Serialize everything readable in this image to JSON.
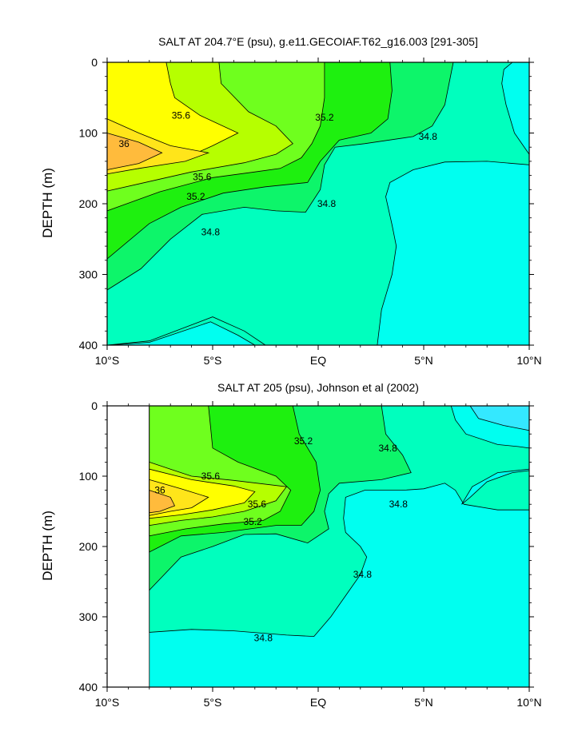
{
  "chart_data": [
    {
      "type": "contour",
      "title": "SALT AT 204.7°E (psu), g.e11.GECOIAF.T62_g16.003 [291-305]",
      "xlabel": "",
      "ylabel": "DEPTH (m)",
      "xlim": [
        -10,
        10
      ],
      "ylim": [
        400,
        0
      ],
      "x_ticks": [
        -10,
        -5,
        0,
        5,
        10
      ],
      "x_tick_labels": [
        "10°S",
        "5°S",
        "EQ",
        "5°N",
        "10°N"
      ],
      "y_ticks": [
        0,
        100,
        200,
        300,
        400
      ],
      "y_tick_labels": [
        "0",
        "100",
        "200",
        "300",
        "400"
      ],
      "contour_labels": [
        {
          "text": "35.6",
          "x": -6.5,
          "depth": 75
        },
        {
          "text": "36",
          "x": -9.2,
          "depth": 115
        },
        {
          "text": "35.2",
          "x": 0.3,
          "depth": 78
        },
        {
          "text": "34.8",
          "x": 5.2,
          "depth": 105
        },
        {
          "text": "35.6",
          "x": -5.5,
          "depth": 162
        },
        {
          "text": "35.2",
          "x": -5.8,
          "depth": 190
        },
        {
          "text": "34.8",
          "x": 0.4,
          "depth": 200
        },
        {
          "text": "34.8",
          "x": -5.1,
          "depth": 240
        }
      ],
      "colorbar": false
    },
    {
      "type": "contour",
      "title": "SALT AT 205 (psu), Johnson et al (2002)",
      "xlabel": "",
      "ylabel": "DEPTH (m)",
      "xlim": [
        -10,
        10
      ],
      "ylim": [
        400,
        0
      ],
      "data_x_range": [
        -8,
        10
      ],
      "x_ticks": [
        -10,
        -5,
        0,
        5,
        10
      ],
      "x_tick_labels": [
        "10°S",
        "5°S",
        "EQ",
        "5°N",
        "10°N"
      ],
      "y_ticks": [
        0,
        100,
        200,
        300,
        400
      ],
      "y_tick_labels": [
        "0",
        "100",
        "200",
        "300",
        "400"
      ],
      "contour_labels": [
        {
          "text": "35.2",
          "x": -0.7,
          "depth": 50
        },
        {
          "text": "34.8",
          "x": 3.3,
          "depth": 60
        },
        {
          "text": "35.6",
          "x": -5.1,
          "depth": 100
        },
        {
          "text": "36",
          "x": -7.5,
          "depth": 120
        },
        {
          "text": "35.6",
          "x": -2.9,
          "depth": 140
        },
        {
          "text": "35.2",
          "x": -3.1,
          "depth": 165
        },
        {
          "text": "34.8",
          "x": 3.8,
          "depth": 140
        },
        {
          "text": "34.8",
          "x": 2.1,
          "depth": 240
        },
        {
          "text": "34.8",
          "x": -2.6,
          "depth": 330
        }
      ],
      "colorbar": false
    }
  ],
  "palette": {
    "36": "#ffbb3c",
    "35.8": "#ffe51a",
    "35.6": "#ffff00",
    "35.4": "#b6ff00",
    "35.2": "#6fff1e",
    "35.0": "#1ef00f",
    "34.9": "#0df56a",
    "34.8": "#00ffbe",
    "34.6": "#00fff0",
    "34.4": "#34e8ff",
    "line": "#000000"
  }
}
